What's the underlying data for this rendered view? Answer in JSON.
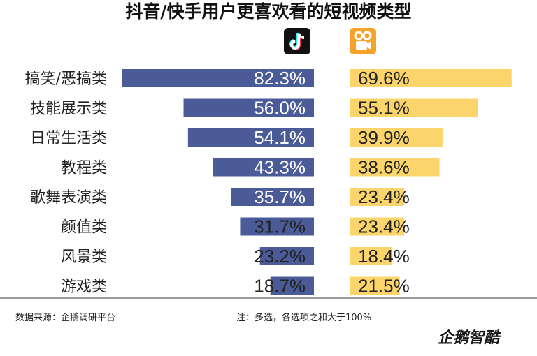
{
  "chart_data": {
    "type": "bar",
    "title": "抖音/快手用户更喜欢看的短视频类型",
    "categories": [
      "搞笑/恶搞类",
      "技能展示类",
      "日常生活类",
      "教程类",
      "歌舞表演类",
      "颜值类",
      "风景类",
      "游戏类"
    ],
    "series": [
      {
        "values": [
          82.3,
          56.0,
          54.1,
          43.3,
          35.7,
          31.7,
          23.2,
          18.7
        ],
        "labels": [
          "82.3%",
          "56.0%",
          "54.1%",
          "43.3%",
          "35.7%",
          "31.7%",
          "23.2%",
          "18.7%"
        ],
        "color": "#4a5b98",
        "icon": "douyin-logo-icon"
      },
      {
        "values": [
          69.6,
          55.1,
          39.9,
          38.6,
          23.4,
          23.4,
          18.4,
          21.5
        ],
        "labels": [
          "69.6%",
          "55.1%",
          "39.9%",
          "38.6%",
          "23.4%",
          "23.4%",
          "18.4%",
          "21.5%"
        ],
        "color": "#fbd56b",
        "icon": "kuaishou-logo-icon"
      }
    ],
    "xlim": [
      0,
      100
    ],
    "grid": false,
    "legend": "icons above bars"
  },
  "footer": {
    "source": "数据来源：企鹅调研平台",
    "note": "注：多选，各选项之和大于100%",
    "watermark": "企鹅智酷"
  }
}
